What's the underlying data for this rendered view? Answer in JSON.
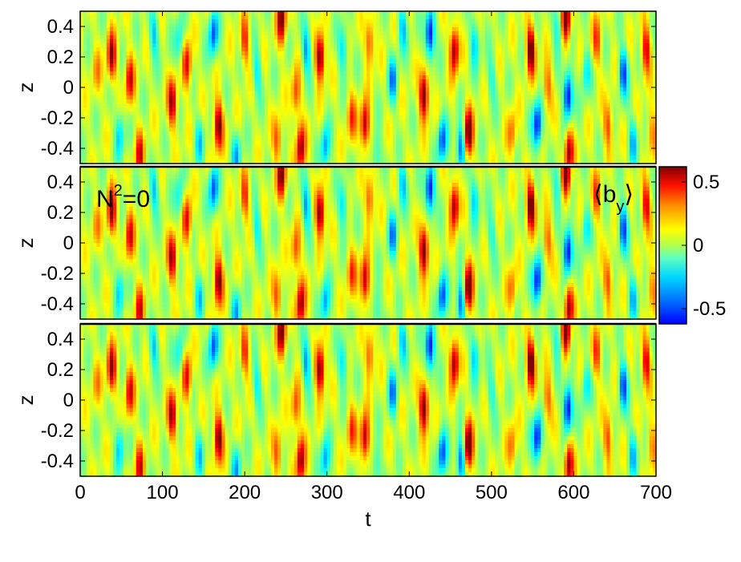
{
  "chart_data": {
    "type": "heatmap",
    "colormap": "jet",
    "grid": false,
    "x_ticks": [
      "0",
      "100",
      "200",
      "300",
      "400",
      "500",
      "600",
      "700"
    ],
    "x_tick_values": [
      0,
      100,
      200,
      300,
      400,
      500,
      600,
      700
    ],
    "xlabel": "t",
    "xlim": [
      0,
      700
    ],
    "panels": [
      {
        "ylabel": "z",
        "ylim": [
          -0.5,
          0.5
        ],
        "y_ticks": [
          "0.4",
          "0.2",
          "0",
          "-0.2",
          "-0.4"
        ],
        "y_tick_values": [
          0.4,
          0.2,
          0,
          -0.2,
          -0.4
        ],
        "annotation": "",
        "quantity_label": ""
      },
      {
        "ylabel": "z",
        "ylim": [
          -0.5,
          0.5
        ],
        "y_ticks": [
          "0.4",
          "0.2",
          "0",
          "-0.2",
          "-0.4"
        ],
        "y_tick_values": [
          0.4,
          0.2,
          0,
          -0.2,
          -0.4
        ],
        "annotation": "N",
        "annotation_sup": "2",
        "annotation_tail": "=0",
        "quantity_label": "b",
        "quantity_sub": "y"
      },
      {
        "ylabel": "z",
        "ylim": [
          -0.5,
          0.5
        ],
        "y_ticks": [
          "0.4",
          "0.2",
          "0",
          "-0.2",
          "-0.4"
        ],
        "y_tick_values": [
          0.4,
          0.2,
          0,
          -0.2,
          -0.4
        ],
        "annotation": "",
        "quantity_label": ""
      }
    ],
    "colorbar": {
      "range": [
        -0.62,
        0.62
      ],
      "ticks": [
        "0.5",
        "0",
        "-0.5"
      ],
      "tick_values": [
        0.5,
        0,
        -0.5
      ]
    },
    "features": [
      {
        "t": 20,
        "z": 0.1,
        "amp": 0.18
      },
      {
        "t": 38,
        "z": 0.2,
        "amp": 0.5
      },
      {
        "t": 48,
        "z": -0.3,
        "amp": -0.3
      },
      {
        "t": 60,
        "z": 0.05,
        "amp": 0.42
      },
      {
        "t": 72,
        "z": -0.45,
        "amp": 0.4
      },
      {
        "t": 90,
        "z": 0.35,
        "amp": -0.3
      },
      {
        "t": 112,
        "z": -0.1,
        "amp": 0.5
      },
      {
        "t": 120,
        "z": 0.3,
        "amp": -0.25
      },
      {
        "t": 130,
        "z": 0.15,
        "amp": 0.42
      },
      {
        "t": 145,
        "z": -0.35,
        "amp": -0.25
      },
      {
        "t": 162,
        "z": 0.35,
        "amp": -0.45
      },
      {
        "t": 168,
        "z": -0.25,
        "amp": 0.58
      },
      {
        "t": 190,
        "z": -0.45,
        "amp": -0.3
      },
      {
        "t": 200,
        "z": 0.3,
        "amp": 0.35
      },
      {
        "t": 215,
        "z": 0.1,
        "amp": -0.25
      },
      {
        "t": 240,
        "z": -0.35,
        "amp": 0.3
      },
      {
        "t": 245,
        "z": 0.45,
        "amp": 0.55
      },
      {
        "t": 262,
        "z": -0.05,
        "amp": 0.32
      },
      {
        "t": 268,
        "z": -0.4,
        "amp": 0.52
      },
      {
        "t": 275,
        "z": 0.25,
        "amp": -0.35
      },
      {
        "t": 292,
        "z": 0.2,
        "amp": 0.62
      },
      {
        "t": 298,
        "z": -0.4,
        "amp": -0.35
      },
      {
        "t": 320,
        "z": 0.25,
        "amp": -0.3
      },
      {
        "t": 330,
        "z": -0.2,
        "amp": 0.3
      },
      {
        "t": 346,
        "z": -0.25,
        "amp": 0.52
      },
      {
        "t": 352,
        "z": 0.3,
        "amp": 0.35
      },
      {
        "t": 360,
        "z": -0.45,
        "amp": -0.25
      },
      {
        "t": 380,
        "z": 0.05,
        "amp": -0.35
      },
      {
        "t": 392,
        "z": 0.4,
        "amp": -0.3
      },
      {
        "t": 418,
        "z": -0.05,
        "amp": 0.62
      },
      {
        "t": 425,
        "z": 0.35,
        "amp": -0.62
      },
      {
        "t": 440,
        "z": -0.35,
        "amp": -0.45
      },
      {
        "t": 455,
        "z": 0.25,
        "amp": 0.55
      },
      {
        "t": 463,
        "z": -0.4,
        "amp": -0.5
      },
      {
        "t": 472,
        "z": -0.3,
        "amp": 0.62
      },
      {
        "t": 480,
        "z": 0.3,
        "amp": -0.3
      },
      {
        "t": 500,
        "z": 0.05,
        "amp": -0.2
      },
      {
        "t": 525,
        "z": -0.3,
        "amp": 0.25
      },
      {
        "t": 548,
        "z": 0.25,
        "amp": 0.62
      },
      {
        "t": 556,
        "z": -0.25,
        "amp": -0.55
      },
      {
        "t": 568,
        "z": 0.0,
        "amp": 0.3
      },
      {
        "t": 580,
        "z": 0.4,
        "amp": -0.25
      },
      {
        "t": 591,
        "z": 0.45,
        "amp": 0.62
      },
      {
        "t": 593,
        "z": -0.05,
        "amp": -0.62
      },
      {
        "t": 594,
        "z": -0.42,
        "amp": 0.52
      },
      {
        "t": 615,
        "z": 0.1,
        "amp": -0.25
      },
      {
        "t": 628,
        "z": 0.3,
        "amp": 0.3
      },
      {
        "t": 642,
        "z": -0.25,
        "amp": 0.32
      },
      {
        "t": 660,
        "z": 0.1,
        "amp": -0.45
      },
      {
        "t": 672,
        "z": -0.35,
        "amp": -0.3
      },
      {
        "t": 688,
        "z": 0.25,
        "amp": 0.45
      },
      {
        "t": 695,
        "z": -0.3,
        "amp": 0.25
      }
    ]
  }
}
